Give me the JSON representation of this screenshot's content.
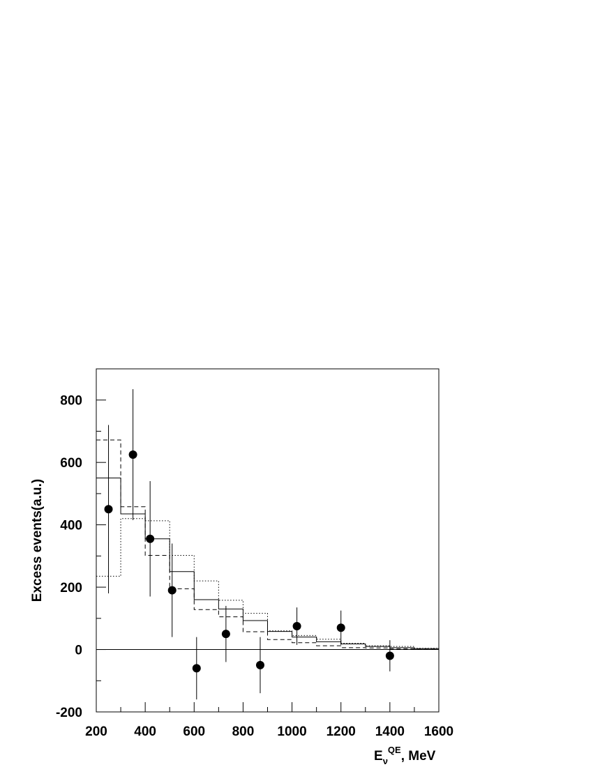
{
  "chart_data": {
    "type": "histogram-with-points",
    "title": "",
    "xlabel": {
      "base": "E",
      "sub": "ν",
      "sup": "QE",
      "suffix": ", MeV"
    },
    "ylabel": "Excess events(a.u.)",
    "xlim": [
      200,
      1600
    ],
    "ylim": [
      -200,
      900
    ],
    "xticks": [
      200,
      400,
      600,
      800,
      1000,
      1200,
      1400,
      1600
    ],
    "yticks": [
      -200,
      0,
      200,
      400,
      600,
      800
    ],
    "xticks_minor_step": 100,
    "yticks_minor_step": 100,
    "zero_line": true,
    "bin_edges": [
      200,
      300,
      400,
      500,
      600,
      700,
      800,
      900,
      1000,
      1100,
      1200,
      1300,
      1400,
      1500,
      1600
    ],
    "histograms": [
      {
        "style": "solid",
        "values": [
          550,
          435,
          355,
          250,
          160,
          130,
          93,
          58,
          40,
          25,
          18,
          10,
          6,
          3
        ]
      },
      {
        "style": "dashed",
        "values": [
          672,
          458,
          302,
          195,
          128,
          105,
          57,
          32,
          22,
          12,
          6,
          5,
          2,
          1
        ]
      },
      {
        "style": "dotted",
        "values": [
          235,
          420,
          413,
          302,
          220,
          158,
          116,
          60,
          45,
          33,
          20,
          12,
          10,
          4
        ]
      }
    ],
    "points": {
      "x": [
        250,
        350,
        420,
        510,
        610,
        730,
        870,
        1020,
        1200,
        1400
      ],
      "y": [
        450,
        625,
        355,
        190,
        -60,
        50,
        -50,
        75,
        70,
        -20
      ],
      "err_low": [
        270,
        210,
        185,
        150,
        100,
        90,
        90,
        60,
        55,
        50
      ],
      "err_high": [
        270,
        210,
        185,
        150,
        100,
        90,
        90,
        60,
        55,
        50
      ]
    }
  }
}
